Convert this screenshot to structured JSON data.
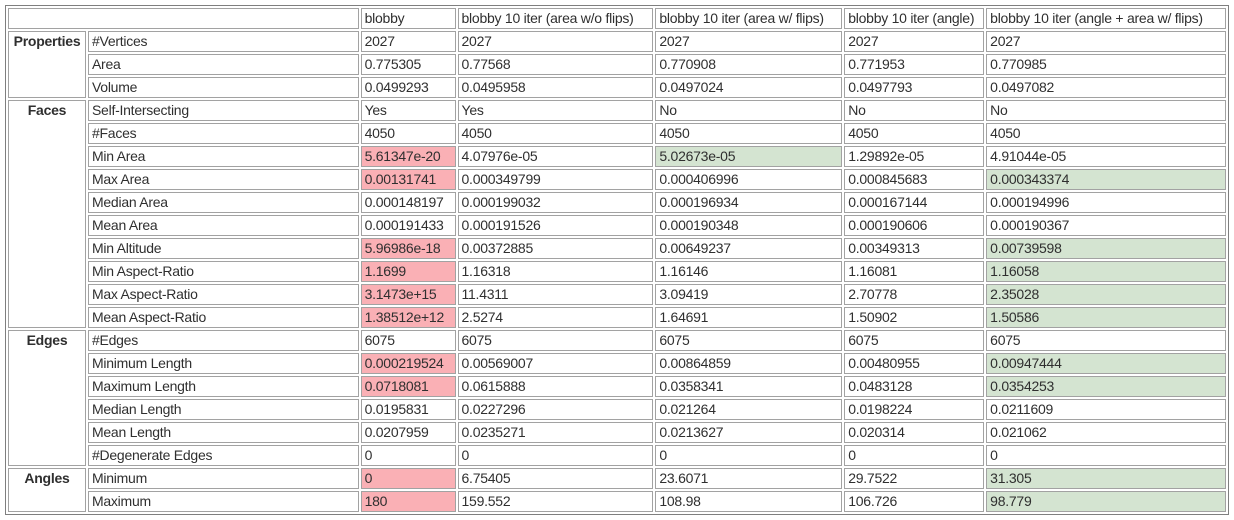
{
  "colors": {
    "red_highlight_bg": "#fab0b5",
    "green_highlight_bg": "#d4e4d1",
    "cell_border": "#a2a2a2",
    "table_border": "#7f7f7f",
    "text": "#2f2f2f",
    "page_background": "#ffffff"
  },
  "chart_data": {
    "type": "table",
    "title": "",
    "corner_label": "",
    "columns": [
      "blobby",
      "blobby 10 iter (area w/o flips)",
      "blobby 10 iter (area w/ flips)",
      "blobby 10 iter (angle)",
      "blobby 10 iter (angle + area w/ flips)"
    ],
    "row_groups": [
      {
        "label": "Properties",
        "rows": [
          {
            "property": "#Vertices",
            "values": [
              "2027",
              "2027",
              "2027",
              "2027",
              "2027"
            ],
            "marks": [
              "",
              "",
              "",
              "",
              ""
            ]
          },
          {
            "property": "Area",
            "values": [
              "0.775305",
              "0.77568",
              "0.770908",
              "0.771953",
              "0.770985"
            ],
            "marks": [
              "",
              "",
              "",
              "",
              ""
            ]
          },
          {
            "property": "Volume",
            "values": [
              "0.0499293",
              "0.0495958",
              "0.0497024",
              "0.0497793",
              "0.0497082"
            ],
            "marks": [
              "",
              "",
              "",
              "",
              ""
            ]
          }
        ]
      },
      {
        "label": "Faces",
        "rows": [
          {
            "property": "Self-Intersecting",
            "values": [
              "Yes",
              "Yes",
              "No",
              "No",
              "No"
            ],
            "marks": [
              "",
              "",
              "",
              "",
              ""
            ]
          },
          {
            "property": "#Faces",
            "values": [
              "4050",
              "4050",
              "4050",
              "4050",
              "4050"
            ],
            "marks": [
              "",
              "",
              "",
              "",
              ""
            ]
          },
          {
            "property": "Min Area",
            "values": [
              "5.61347e-20",
              "4.07976e-05",
              "5.02673e-05",
              "1.29892e-05",
              "4.91044e-05"
            ],
            "marks": [
              "red",
              "",
              "green",
              "",
              ""
            ]
          },
          {
            "property": "Max Area",
            "values": [
              "0.00131741",
              "0.000349799",
              "0.000406996",
              "0.000845683",
              "0.000343374"
            ],
            "marks": [
              "red",
              "",
              "",
              "",
              "green"
            ]
          },
          {
            "property": "Median Area",
            "values": [
              "0.000148197",
              "0.000199032",
              "0.000196934",
              "0.000167144",
              "0.000194996"
            ],
            "marks": [
              "",
              "",
              "",
              "",
              ""
            ]
          },
          {
            "property": "Mean Area",
            "values": [
              "0.000191433",
              "0.000191526",
              "0.000190348",
              "0.000190606",
              "0.000190367"
            ],
            "marks": [
              "",
              "",
              "",
              "",
              ""
            ]
          },
          {
            "property": "Min Altitude",
            "values": [
              "5.96986e-18",
              "0.00372885",
              "0.00649237",
              "0.00349313",
              "0.00739598"
            ],
            "marks": [
              "red",
              "",
              "",
              "",
              "green"
            ]
          },
          {
            "property": "Min Aspect-Ratio",
            "values": [
              "1.1699",
              "1.16318",
              "1.16146",
              "1.16081",
              "1.16058"
            ],
            "marks": [
              "red",
              "",
              "",
              "",
              "green"
            ]
          },
          {
            "property": "Max Aspect-Ratio",
            "values": [
              "3.1473e+15",
              "11.4311",
              "3.09419",
              "2.70778",
              "2.35028"
            ],
            "marks": [
              "red",
              "",
              "",
              "",
              "green"
            ]
          },
          {
            "property": "Mean Aspect-Ratio",
            "values": [
              "1.38512e+12",
              "2.5274",
              "1.64691",
              "1.50902",
              "1.50586"
            ],
            "marks": [
              "red",
              "",
              "",
              "",
              "green"
            ]
          }
        ]
      },
      {
        "label": "Edges",
        "rows": [
          {
            "property": "#Edges",
            "values": [
              "6075",
              "6075",
              "6075",
              "6075",
              "6075"
            ],
            "marks": [
              "",
              "",
              "",
              "",
              ""
            ]
          },
          {
            "property": "Minimum Length",
            "values": [
              "0.000219524",
              "0.00569007",
              "0.00864859",
              "0.00480955",
              "0.00947444"
            ],
            "marks": [
              "red",
              "",
              "",
              "",
              "green"
            ]
          },
          {
            "property": "Maximum Length",
            "values": [
              "0.0718081",
              "0.0615888",
              "0.0358341",
              "0.0483128",
              "0.0354253"
            ],
            "marks": [
              "red",
              "",
              "",
              "",
              "green"
            ]
          },
          {
            "property": "Median Length",
            "values": [
              "0.0195831",
              "0.0227296",
              "0.021264",
              "0.0198224",
              "0.0211609"
            ],
            "marks": [
              "",
              "",
              "",
              "",
              ""
            ]
          },
          {
            "property": "Mean Length",
            "values": [
              "0.0207959",
              "0.0235271",
              "0.0213627",
              "0.020314",
              "0.021062"
            ],
            "marks": [
              "",
              "",
              "",
              "",
              ""
            ]
          },
          {
            "property": "#Degenerate Edges",
            "values": [
              "0",
              "0",
              "0",
              "0",
              "0"
            ],
            "marks": [
              "",
              "",
              "",
              "",
              ""
            ]
          }
        ]
      },
      {
        "label": "Angles",
        "rows": [
          {
            "property": "Minimum",
            "values": [
              "0",
              "6.75405",
              "23.6071",
              "29.7522",
              "31.305"
            ],
            "marks": [
              "red",
              "",
              "",
              "",
              "green"
            ]
          },
          {
            "property": "Maximum",
            "values": [
              "180",
              "159.552",
              "108.98",
              "106.726",
              "98.779"
            ],
            "marks": [
              "red",
              "",
              "",
              "",
              "green"
            ]
          }
        ]
      }
    ]
  }
}
